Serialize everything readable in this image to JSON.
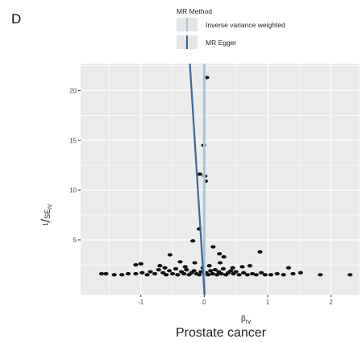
{
  "panel_label": "D",
  "chart_data": {
    "type": "scatter",
    "title": "Prostate cancer",
    "xlabel": "βIV",
    "ylabel": "1/SEIV",
    "xlim": [
      -1.95,
      2.45
    ],
    "ylim": [
      -0.5,
      22.7
    ],
    "x_ticks": [
      {
        "value": -1,
        "label": "-1"
      },
      {
        "value": 0,
        "label": "0"
      },
      {
        "value": 1,
        "label": "1"
      },
      {
        "value": 2,
        "label": "2"
      }
    ],
    "y_ticks": [
      {
        "value": 5,
        "label": "5"
      },
      {
        "value": 10,
        "label": "10"
      },
      {
        "value": 15,
        "label": "15"
      },
      {
        "value": 20,
        "label": "20"
      }
    ],
    "grid": true,
    "background_color": "#ebebeb",
    "point_color": "#111111",
    "legend": {
      "title": "MR Method",
      "placement": "top",
      "entries": [
        {
          "label": "Inverse variance weighted",
          "color": "#a6c6dc",
          "slope": 0.0
        },
        {
          "label": "MR Egger",
          "color": "#3b6696",
          "slope": -0.01
        }
      ]
    },
    "points": [
      {
        "x": 0.04,
        "y": 21.3
      },
      {
        "x": -0.01,
        "y": 14.5
      },
      {
        "x": -0.07,
        "y": 11.6
      },
      {
        "x": 0.01,
        "y": 11.4
      },
      {
        "x": 0.02,
        "y": 10.9
      },
      {
        "x": -0.08,
        "y": 6.1
      },
      {
        "x": -0.18,
        "y": 4.9
      },
      {
        "x": 0.14,
        "y": 4.3
      },
      {
        "x": 0.88,
        "y": 3.8
      },
      {
        "x": 0.24,
        "y": 3.6
      },
      {
        "x": 0.31,
        "y": 3.3
      },
      {
        "x": -0.54,
        "y": 3.5
      },
      {
        "x": -1.0,
        "y": 2.6
      },
      {
        "x": -0.38,
        "y": 2.8
      },
      {
        "x": -0.15,
        "y": 2.7
      },
      {
        "x": 0.25,
        "y": 2.7
      },
      {
        "x": 0.6,
        "y": 2.3
      },
      {
        "x": 1.33,
        "y": 2.2
      },
      {
        "x": -0.7,
        "y": 2.4
      },
      {
        "x": 0.72,
        "y": 2.4
      },
      {
        "x": -1.62,
        "y": 1.6
      },
      {
        "x": -1.55,
        "y": 1.6
      },
      {
        "x": -1.42,
        "y": 1.5
      },
      {
        "x": -1.3,
        "y": 1.5
      },
      {
        "x": -1.2,
        "y": 1.6
      },
      {
        "x": -1.08,
        "y": 1.6
      },
      {
        "x": -0.98,
        "y": 1.7
      },
      {
        "x": -0.9,
        "y": 1.5
      },
      {
        "x": -0.85,
        "y": 1.8
      },
      {
        "x": -0.78,
        "y": 1.6
      },
      {
        "x": -0.72,
        "y": 2.0
      },
      {
        "x": -0.65,
        "y": 1.7
      },
      {
        "x": -0.6,
        "y": 1.5
      },
      {
        "x": -0.55,
        "y": 1.9
      },
      {
        "x": -0.5,
        "y": 1.6
      },
      {
        "x": -0.45,
        "y": 2.1
      },
      {
        "x": -0.42,
        "y": 1.5
      },
      {
        "x": -0.36,
        "y": 1.8
      },
      {
        "x": -0.32,
        "y": 1.6
      },
      {
        "x": -0.28,
        "y": 2.0
      },
      {
        "x": -0.24,
        "y": 1.5
      },
      {
        "x": -0.2,
        "y": 1.7
      },
      {
        "x": -0.16,
        "y": 1.9
      },
      {
        "x": -0.12,
        "y": 1.6
      },
      {
        "x": -0.08,
        "y": 1.5
      },
      {
        "x": -0.05,
        "y": 1.8
      },
      {
        "x": -0.02,
        "y": 2.2
      },
      {
        "x": 0.03,
        "y": 1.7
      },
      {
        "x": 0.06,
        "y": 1.5
      },
      {
        "x": 0.1,
        "y": 1.9
      },
      {
        "x": 0.13,
        "y": 1.6
      },
      {
        "x": 0.17,
        "y": 2.0
      },
      {
        "x": 0.2,
        "y": 1.5
      },
      {
        "x": 0.23,
        "y": 1.8
      },
      {
        "x": 0.27,
        "y": 1.6
      },
      {
        "x": 0.3,
        "y": 2.1
      },
      {
        "x": 0.34,
        "y": 1.5
      },
      {
        "x": 0.38,
        "y": 1.7
      },
      {
        "x": 0.42,
        "y": 1.9
      },
      {
        "x": 0.46,
        "y": 1.6
      },
      {
        "x": 0.5,
        "y": 1.8
      },
      {
        "x": 0.55,
        "y": 1.5
      },
      {
        "x": 0.62,
        "y": 1.7
      },
      {
        "x": 0.68,
        "y": 1.5
      },
      {
        "x": 0.76,
        "y": 1.6
      },
      {
        "x": 0.82,
        "y": 1.5
      },
      {
        "x": 0.9,
        "y": 1.7
      },
      {
        "x": 0.96,
        "y": 1.5
      },
      {
        "x": 1.05,
        "y": 1.5
      },
      {
        "x": 1.15,
        "y": 1.6
      },
      {
        "x": 1.25,
        "y": 1.5
      },
      {
        "x": 1.4,
        "y": 1.6
      },
      {
        "x": 1.52,
        "y": 1.7
      },
      {
        "x": 1.83,
        "y": 1.5
      },
      {
        "x": 2.3,
        "y": 1.5
      },
      {
        "x": -1.08,
        "y": 2.5
      },
      {
        "x": -0.3,
        "y": 2.3
      },
      {
        "x": 0.08,
        "y": 2.4
      },
      {
        "x": 0.45,
        "y": 2.2
      },
      {
        "x": -0.62,
        "y": 2.2
      }
    ]
  }
}
